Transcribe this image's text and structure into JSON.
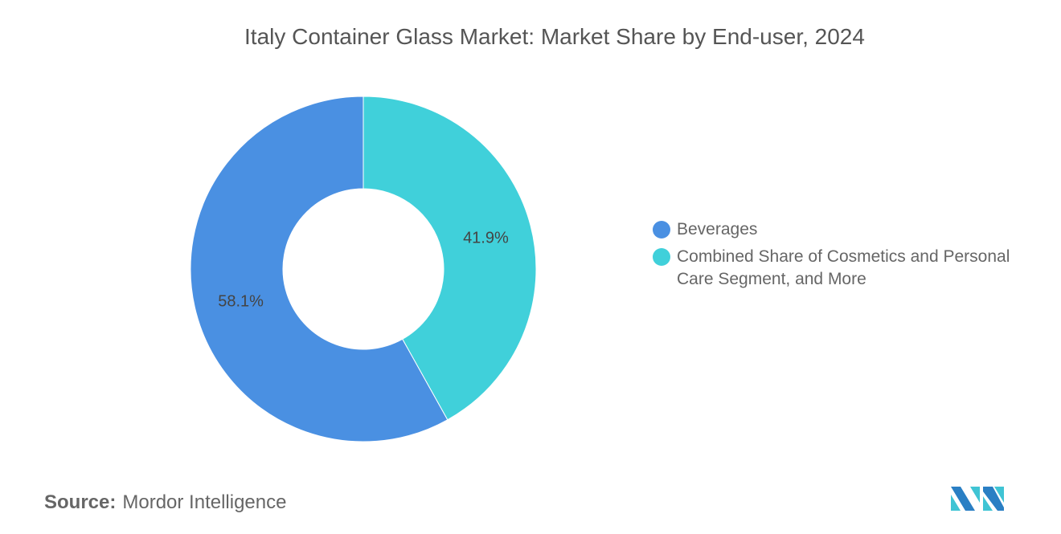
{
  "chart_data": {
    "type": "pie",
    "variant": "donut",
    "title": "Italy Container Glass Market: Market Share by End-user, 2024",
    "slices": [
      {
        "label": "Combined Share of Cosmetics and Personal Care Segment, and More",
        "value": 41.9,
        "display": "41.9%",
        "color": "#40D0DA"
      },
      {
        "label": "Beverages",
        "value": 58.1,
        "display": "58.1%",
        "color": "#4A90E2"
      }
    ],
    "legend": [
      {
        "label": "Beverages",
        "color": "#4A90E2"
      },
      {
        "label": "Combined Share of Cosmetics and Personal Care Segment, and More",
        "color": "#40D0DA"
      }
    ],
    "legend_placement": "right"
  },
  "source": {
    "label": "Source:",
    "value": "Mordor Intelligence"
  }
}
